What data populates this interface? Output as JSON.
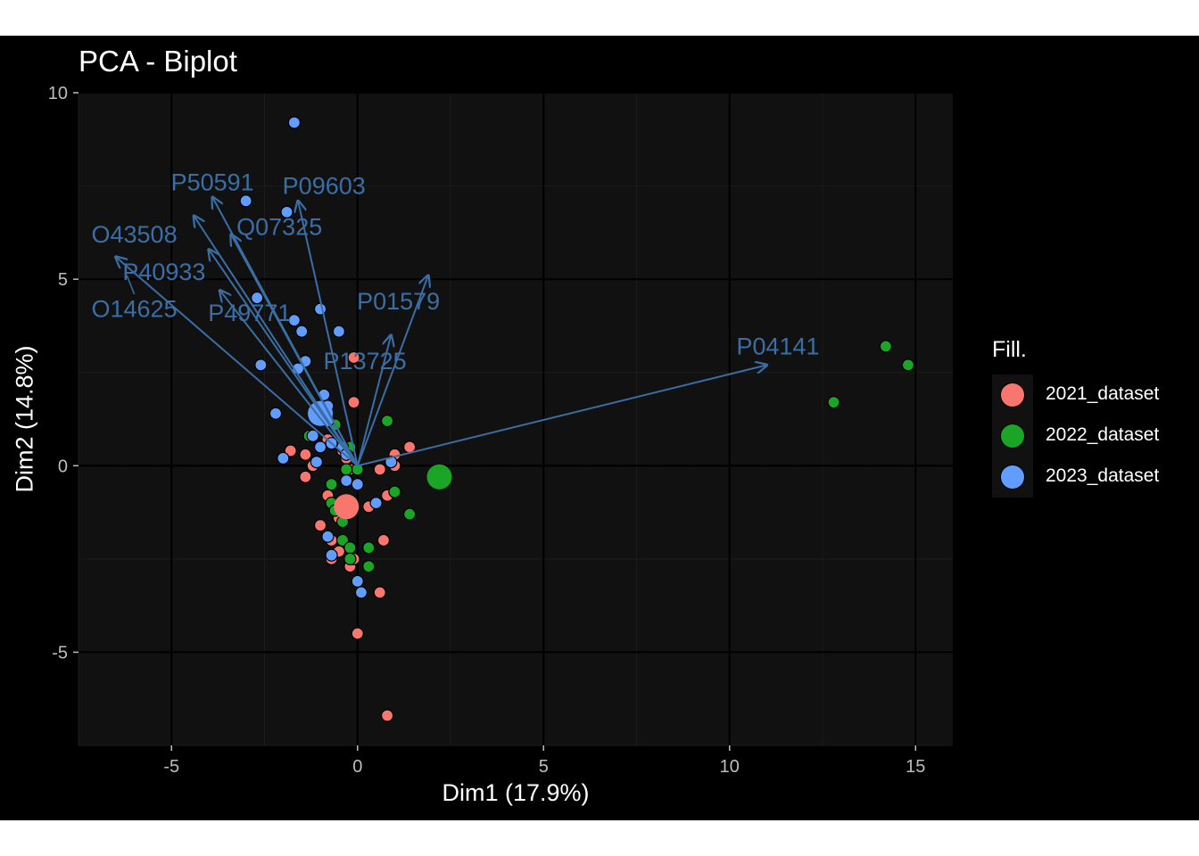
{
  "chart_data": {
    "type": "scatter",
    "title": "PCA - Biplot",
    "xlabel": "Dim1 (17.9%)",
    "ylabel": "Dim2 (14.8%)",
    "xlim": [
      -7.5,
      16
    ],
    "ylim": [
      -7.5,
      10
    ],
    "x_ticks": [
      -5,
      0,
      5,
      10,
      15
    ],
    "x_tick_labels": [
      "-5",
      "0",
      "5",
      "10",
      "15"
    ],
    "y_ticks": [
      -5,
      0,
      5,
      10
    ],
    "y_tick_labels": [
      "-5",
      "0",
      "5",
      "10"
    ],
    "grid": true,
    "legend_title": "Fill.",
    "legend_position": "right",
    "colors": {
      "background": "#000000",
      "panel": "#111111",
      "grid_major": "#000000",
      "grid_minor": "#1c1c1c",
      "axis_text": "#bdbdbd",
      "arrow": "#3a6ea5"
    },
    "series": [
      {
        "name": "2021_dataset",
        "color": "#F8766D",
        "centroid": [
          -0.3,
          -1.1
        ],
        "points": [
          [
            -1.6,
            2.6
          ],
          [
            -0.1,
            2.9
          ],
          [
            -0.1,
            1.7
          ],
          [
            1.4,
            0.5
          ],
          [
            1.0,
            0.3
          ],
          [
            1.0,
            0.0
          ],
          [
            0.6,
            -0.1
          ],
          [
            -1.8,
            0.4
          ],
          [
            -1.4,
            -0.3
          ],
          [
            -1.4,
            0.3
          ],
          [
            -1.2,
            0.0
          ],
          [
            -0.8,
            0.7
          ],
          [
            -0.4,
            0.4
          ],
          [
            -0.3,
            0.2
          ],
          [
            -0.2,
            -0.1
          ],
          [
            0.8,
            -0.8
          ],
          [
            1.0,
            -0.7
          ],
          [
            -0.8,
            -0.8
          ],
          [
            -1.0,
            -1.6
          ],
          [
            -0.5,
            -1.4
          ],
          [
            -0.7,
            -2.0
          ],
          [
            -0.7,
            -2.5
          ],
          [
            -0.5,
            -2.3
          ],
          [
            -0.2,
            -2.7
          ],
          [
            0.7,
            -2.0
          ],
          [
            -0.1,
            -2.5
          ],
          [
            0.6,
            -3.4
          ],
          [
            0.0,
            -4.5
          ],
          [
            0.8,
            -6.7
          ],
          [
            0.3,
            -1.1
          ]
        ]
      },
      {
        "name": "2022_dataset",
        "color": "#1BA527",
        "centroid": [
          2.2,
          -0.3
        ],
        "points": [
          [
            14.2,
            3.2
          ],
          [
            14.8,
            2.7
          ],
          [
            12.8,
            1.7
          ],
          [
            0.8,
            1.2
          ],
          [
            -0.6,
            1.1
          ],
          [
            -1.3,
            0.8
          ],
          [
            -0.2,
            0.5
          ],
          [
            0.0,
            -0.1
          ],
          [
            -0.7,
            -0.5
          ],
          [
            -0.3,
            -0.1
          ],
          [
            1.0,
            -0.7
          ],
          [
            1.4,
            -1.3
          ],
          [
            -0.7,
            -1.0
          ],
          [
            -0.4,
            -1.5
          ],
          [
            -0.4,
            -2.0
          ],
          [
            -0.2,
            -2.2
          ],
          [
            0.3,
            -2.2
          ],
          [
            0.3,
            -2.7
          ],
          [
            -0.2,
            -2.5
          ],
          [
            -0.6,
            -1.2
          ]
        ]
      },
      {
        "name": "2023_dataset",
        "color": "#619CFF",
        "centroid": [
          -1.0,
          1.4
        ],
        "points": [
          [
            -1.7,
            9.2
          ],
          [
            -3.0,
            7.1
          ],
          [
            -1.9,
            6.8
          ],
          [
            -2.7,
            4.5
          ],
          [
            -1.0,
            4.2
          ],
          [
            -1.7,
            3.9
          ],
          [
            -1.5,
            3.6
          ],
          [
            -0.5,
            3.6
          ],
          [
            -2.6,
            2.7
          ],
          [
            -1.4,
            2.8
          ],
          [
            -1.6,
            2.6
          ],
          [
            -0.9,
            1.9
          ],
          [
            -0.8,
            1.6
          ],
          [
            -2.2,
            1.4
          ],
          [
            -0.8,
            1.2
          ],
          [
            -1.2,
            0.8
          ],
          [
            -1.0,
            0.5
          ],
          [
            -0.4,
            0.5
          ],
          [
            -0.7,
            0.6
          ],
          [
            -2.0,
            0.2
          ],
          [
            -1.1,
            0.1
          ],
          [
            -0.3,
            0.3
          ],
          [
            0.9,
            0.1
          ],
          [
            -0.3,
            -0.4
          ],
          [
            0.0,
            -0.5
          ],
          [
            0.5,
            -1.0
          ],
          [
            -0.8,
            -1.9
          ],
          [
            -0.7,
            -2.4
          ],
          [
            0.0,
            -3.1
          ],
          [
            0.1,
            -3.4
          ]
        ]
      }
    ],
    "variables": [
      {
        "label": "P50591",
        "end": [
          -3.9,
          7.2
        ],
        "label_pos": [
          -3.9,
          7.6
        ]
      },
      {
        "label": "P09603",
        "end": [
          -1.6,
          7.1
        ],
        "label_pos": [
          -0.9,
          7.5
        ]
      },
      {
        "label": "Q07325",
        "end": [
          -3.4,
          6.2
        ],
        "label_pos": [
          -2.1,
          6.4
        ]
      },
      {
        "label": "O43508",
        "end": [
          -4.4,
          6.7
        ],
        "label_pos": [
          -6.0,
          6.2
        ]
      },
      {
        "label": "P40933",
        "end": [
          -4.0,
          5.8
        ],
        "label_pos": [
          -5.2,
          5.2
        ]
      },
      {
        "label": "O14625",
        "end": [
          -6.5,
          5.6
        ],
        "label_pos": [
          -6.0,
          4.2
        ]
      },
      {
        "label": "P49771",
        "end": [
          -3.7,
          4.7
        ],
        "label_pos": [
          -2.9,
          4.1
        ]
      },
      {
        "label": "P01579",
        "end": [
          1.9,
          5.1
        ],
        "label_pos": [
          1.1,
          4.4
        ]
      },
      {
        "label": "P13725",
        "end": [
          0.9,
          3.5
        ],
        "label_pos": [
          0.2,
          2.8
        ]
      },
      {
        "label": "P04141",
        "end": [
          11.0,
          2.7
        ],
        "label_pos": [
          11.3,
          3.2
        ]
      }
    ]
  },
  "legend_items": [
    {
      "label": "2021_dataset",
      "color": "#F8766D"
    },
    {
      "label": "2022_dataset",
      "color": "#1BA527"
    },
    {
      "label": "2023_dataset",
      "color": "#619CFF"
    }
  ]
}
